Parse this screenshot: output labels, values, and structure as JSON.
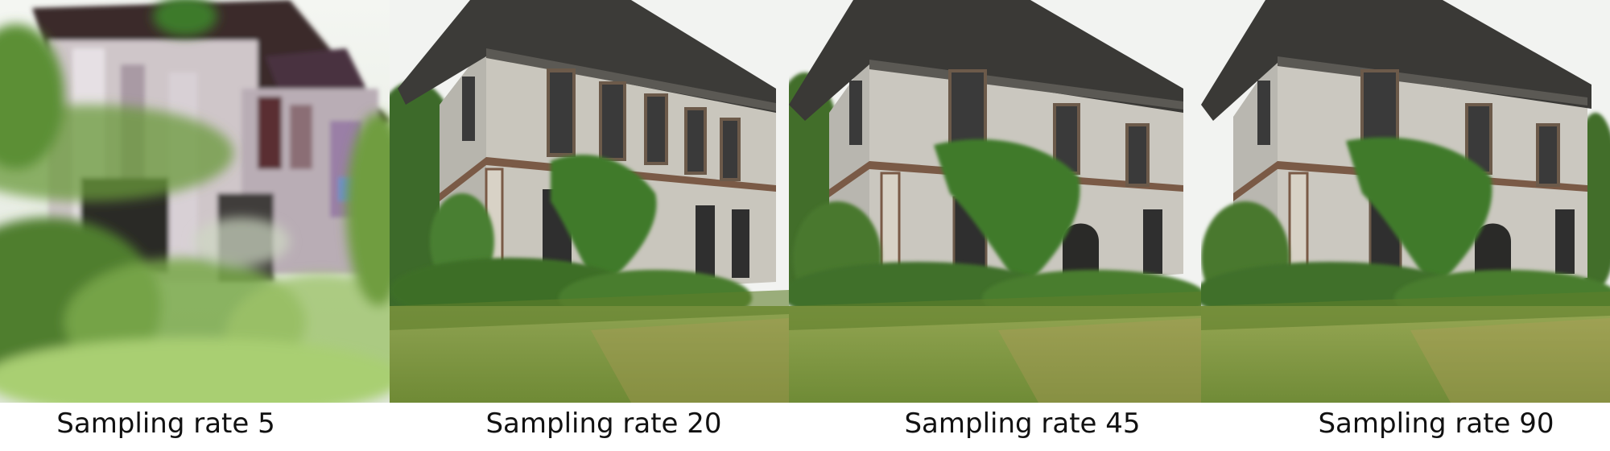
{
  "panels": [
    {
      "caption": "Sampling rate 5"
    },
    {
      "caption": "Sampling rate 20"
    },
    {
      "caption": "Sampling rate 45"
    },
    {
      "caption": "Sampling rate 90"
    }
  ]
}
